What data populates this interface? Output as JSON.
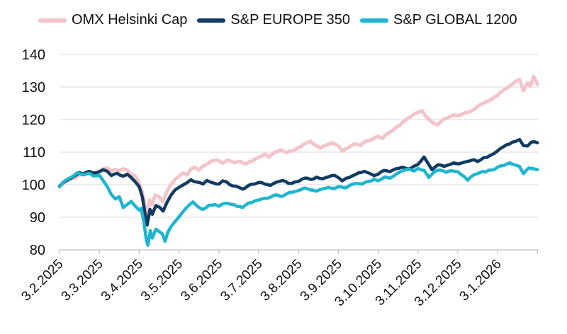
{
  "legend": {
    "position": "top",
    "items": [
      {
        "label": "OMX Helsinki Cap",
        "color": "#F3C5CB"
      },
      {
        "label": "S&P EUROPE 350",
        "color": "#113B62"
      },
      {
        "label": "S&P GLOBAL 1200",
        "color": "#1EB5CF"
      }
    ]
  },
  "chart_data": {
    "type": "line",
    "grid": true,
    "legend_position": "top",
    "background": "#ffffff",
    "gridline_color": "#D9D9D9",
    "axis_color": "#BFBFBF",
    "text_color": "#111111",
    "x_axis": {
      "unit": "months since first tick (labels are d.m.yyyy dates)",
      "tick_labels": [
        "3.2.2025",
        "3.3.2025",
        "3.4.2025",
        "3.5.2025",
        "3.6.2025",
        "3.7.2025",
        "3.8.2025",
        "3.9.2025",
        "3.10.2025",
        "3.11.2025",
        "3.12.2025",
        "3.1.2026"
      ],
      "range": [
        0,
        12.03
      ]
    },
    "y_axis": {
      "min": 80,
      "max": 140,
      "step": 10,
      "tick_labels": [
        "80",
        "90",
        "100",
        "110",
        "120",
        "130",
        "140"
      ]
    },
    "series": [
      {
        "name": "OMX Helsinki Cap",
        "color": "#F3C5CB",
        "points": [
          [
            0,
            99.3
          ],
          [
            0.1,
            100.4
          ],
          [
            0.2,
            101.5
          ],
          [
            0.3,
            102.1
          ],
          [
            0.4,
            102.0
          ],
          [
            0.5,
            103.0
          ],
          [
            0.6,
            103.2
          ],
          [
            0.7,
            103.6
          ],
          [
            0.8,
            103.8
          ],
          [
            0.9,
            103.4
          ],
          [
            1.0,
            104.2
          ],
          [
            1.1,
            104.9
          ],
          [
            1.2,
            105.1
          ],
          [
            1.3,
            104.3
          ],
          [
            1.4,
            104.6
          ],
          [
            1.5,
            104.4
          ],
          [
            1.6,
            104.9
          ],
          [
            1.7,
            104.5
          ],
          [
            1.8,
            103.2
          ],
          [
            1.9,
            102.7
          ],
          [
            2.0,
            100.6
          ],
          [
            2.08,
            97.5
          ],
          [
            2.15,
            92.8
          ],
          [
            2.2,
            91.0
          ],
          [
            2.26,
            95.3
          ],
          [
            2.32,
            93.8
          ],
          [
            2.4,
            96.8
          ],
          [
            2.5,
            96.2
          ],
          [
            2.6,
            94.8
          ],
          [
            2.7,
            98.0
          ],
          [
            2.8,
            100.0
          ],
          [
            2.9,
            101.6
          ],
          [
            3.0,
            102.6
          ],
          [
            3.1,
            103.6
          ],
          [
            3.2,
            103.0
          ],
          [
            3.3,
            104.8
          ],
          [
            3.4,
            105.4
          ],
          [
            3.5,
            104.5
          ],
          [
            3.65,
            106.0
          ],
          [
            3.8,
            107.2
          ],
          [
            3.95,
            107.6
          ],
          [
            4.1,
            106.6
          ],
          [
            4.25,
            107.6
          ],
          [
            4.4,
            106.8
          ],
          [
            4.55,
            107.1
          ],
          [
            4.7,
            106.5
          ],
          [
            4.85,
            107.3
          ],
          [
            5.0,
            108.4
          ],
          [
            5.15,
            109.4
          ],
          [
            5.25,
            108.5
          ],
          [
            5.4,
            110.0
          ],
          [
            5.55,
            110.7
          ],
          [
            5.7,
            109.8
          ],
          [
            5.85,
            110.4
          ],
          [
            6.0,
            111.4
          ],
          [
            6.15,
            112.6
          ],
          [
            6.3,
            113.4
          ],
          [
            6.42,
            112.2
          ],
          [
            6.55,
            111.2
          ],
          [
            6.7,
            112.2
          ],
          [
            6.85,
            112.9
          ],
          [
            7.0,
            112.0
          ],
          [
            7.1,
            110.3
          ],
          [
            7.25,
            111.4
          ],
          [
            7.4,
            112.5
          ],
          [
            7.55,
            112.0
          ],
          [
            7.7,
            113.4
          ],
          [
            7.85,
            113.9
          ],
          [
            8.0,
            114.8
          ],
          [
            8.1,
            114.2
          ],
          [
            8.25,
            115.8
          ],
          [
            8.4,
            117.0
          ],
          [
            8.55,
            118.3
          ],
          [
            8.7,
            120.0
          ],
          [
            8.85,
            121.2
          ],
          [
            9.0,
            122.2
          ],
          [
            9.1,
            122.7
          ],
          [
            9.2,
            121.0
          ],
          [
            9.35,
            119.2
          ],
          [
            9.5,
            118.4
          ],
          [
            9.65,
            120.2
          ],
          [
            9.8,
            120.9
          ],
          [
            9.9,
            121.4
          ],
          [
            10.0,
            121.2
          ],
          [
            10.15,
            121.9
          ],
          [
            10.3,
            122.4
          ],
          [
            10.45,
            123.5
          ],
          [
            10.6,
            124.8
          ],
          [
            10.75,
            125.7
          ],
          [
            10.9,
            126.7
          ],
          [
            11.0,
            127.5
          ],
          [
            11.15,
            129.1
          ],
          [
            11.3,
            130.3
          ],
          [
            11.45,
            131.7
          ],
          [
            11.55,
            132.3
          ],
          [
            11.65,
            128.9
          ],
          [
            11.75,
            131.3
          ],
          [
            11.82,
            130.3
          ],
          [
            11.9,
            133.3
          ],
          [
            12.0,
            130.9
          ]
        ]
      },
      {
        "name": "S&P EUROPE 350",
        "color": "#113B62",
        "points": [
          [
            0,
            99.6
          ],
          [
            0.1,
            100.7
          ],
          [
            0.2,
            101.4
          ],
          [
            0.35,
            102.5
          ],
          [
            0.5,
            103.7
          ],
          [
            0.6,
            103.3
          ],
          [
            0.75,
            104.1
          ],
          [
            0.9,
            103.6
          ],
          [
            1.0,
            104.0
          ],
          [
            1.1,
            104.6
          ],
          [
            1.2,
            104.1
          ],
          [
            1.3,
            102.8
          ],
          [
            1.45,
            103.5
          ],
          [
            1.6,
            102.6
          ],
          [
            1.7,
            103.2
          ],
          [
            1.8,
            102.2
          ],
          [
            1.9,
            100.9
          ],
          [
            2.0,
            99.4
          ],
          [
            2.08,
            96.2
          ],
          [
            2.15,
            90.9
          ],
          [
            2.2,
            87.6
          ],
          [
            2.27,
            92.4
          ],
          [
            2.33,
            90.9
          ],
          [
            2.42,
            93.6
          ],
          [
            2.52,
            93.0
          ],
          [
            2.6,
            91.9
          ],
          [
            2.7,
            94.6
          ],
          [
            2.8,
            96.8
          ],
          [
            2.9,
            98.4
          ],
          [
            3.0,
            99.2
          ],
          [
            3.1,
            99.9
          ],
          [
            3.2,
            100.6
          ],
          [
            3.3,
            101.5
          ],
          [
            3.45,
            100.8
          ],
          [
            3.6,
            100.2
          ],
          [
            3.7,
            101.3
          ],
          [
            3.85,
            100.6
          ],
          [
            4.0,
            100.2
          ],
          [
            4.1,
            101.2
          ],
          [
            4.2,
            100.8
          ],
          [
            4.35,
            99.6
          ],
          [
            4.5,
            99.2
          ],
          [
            4.6,
            98.6
          ],
          [
            4.75,
            99.8
          ],
          [
            4.9,
            100.2
          ],
          [
            5.0,
            100.7
          ],
          [
            5.15,
            100.2
          ],
          [
            5.3,
            99.8
          ],
          [
            5.45,
            100.8
          ],
          [
            5.6,
            101.3
          ],
          [
            5.75,
            100.4
          ],
          [
            5.9,
            100.8
          ],
          [
            6.0,
            101.0
          ],
          [
            6.15,
            102.0
          ],
          [
            6.3,
            101.6
          ],
          [
            6.45,
            102.3
          ],
          [
            6.6,
            101.8
          ],
          [
            6.75,
            102.4
          ],
          [
            6.9,
            102.9
          ],
          [
            7.0,
            102.2
          ],
          [
            7.1,
            101.2
          ],
          [
            7.2,
            102.0
          ],
          [
            7.35,
            102.7
          ],
          [
            7.5,
            103.6
          ],
          [
            7.65,
            104.1
          ],
          [
            7.8,
            103.4
          ],
          [
            7.9,
            102.8
          ],
          [
            8.0,
            103.2
          ],
          [
            8.15,
            104.4
          ],
          [
            8.3,
            104.0
          ],
          [
            8.45,
            104.9
          ],
          [
            8.6,
            105.4
          ],
          [
            8.75,
            104.8
          ],
          [
            8.9,
            105.7
          ],
          [
            9.0,
            106.2
          ],
          [
            9.15,
            108.5
          ],
          [
            9.25,
            106.6
          ],
          [
            9.35,
            104.6
          ],
          [
            9.5,
            106.1
          ],
          [
            9.65,
            105.6
          ],
          [
            9.8,
            106.2
          ],
          [
            9.9,
            106.7
          ],
          [
            10.0,
            106.4
          ],
          [
            10.15,
            106.9
          ],
          [
            10.3,
            107.3
          ],
          [
            10.4,
            107.7
          ],
          [
            10.5,
            107.1
          ],
          [
            10.65,
            108.3
          ],
          [
            10.8,
            108.9
          ],
          [
            10.9,
            109.5
          ],
          [
            11.0,
            110.4
          ],
          [
            11.15,
            111.7
          ],
          [
            11.3,
            112.5
          ],
          [
            11.45,
            113.3
          ],
          [
            11.55,
            113.9
          ],
          [
            11.65,
            112.0
          ],
          [
            11.75,
            111.9
          ],
          [
            11.85,
            113.1
          ],
          [
            12.0,
            112.9
          ]
        ]
      },
      {
        "name": "S&P GLOBAL 1200",
        "color": "#1EB5CF",
        "points": [
          [
            0,
            99.4
          ],
          [
            0.1,
            100.9
          ],
          [
            0.2,
            101.7
          ],
          [
            0.3,
            102.3
          ],
          [
            0.45,
            103.7
          ],
          [
            0.6,
            103.0
          ],
          [
            0.75,
            103.5
          ],
          [
            0.85,
            102.7
          ],
          [
            1.0,
            102.9
          ],
          [
            1.1,
            101.2
          ],
          [
            1.2,
            99.4
          ],
          [
            1.3,
            97.0
          ],
          [
            1.4,
            95.6
          ],
          [
            1.5,
            96.3
          ],
          [
            1.6,
            93.0
          ],
          [
            1.7,
            93.9
          ],
          [
            1.8,
            94.9
          ],
          [
            1.9,
            93.4
          ],
          [
            2.0,
            92.2
          ],
          [
            2.05,
            92.7
          ],
          [
            2.12,
            88.4
          ],
          [
            2.18,
            83.0
          ],
          [
            2.22,
            81.4
          ],
          [
            2.28,
            85.9
          ],
          [
            2.33,
            83.6
          ],
          [
            2.42,
            86.3
          ],
          [
            2.5,
            85.6
          ],
          [
            2.58,
            84.9
          ],
          [
            2.65,
            82.6
          ],
          [
            2.72,
            85.4
          ],
          [
            2.8,
            87.1
          ],
          [
            2.9,
            88.7
          ],
          [
            3.0,
            90.1
          ],
          [
            3.1,
            91.7
          ],
          [
            3.25,
            93.7
          ],
          [
            3.35,
            94.7
          ],
          [
            3.5,
            93.0
          ],
          [
            3.6,
            92.4
          ],
          [
            3.75,
            93.7
          ],
          [
            3.9,
            93.9
          ],
          [
            4.0,
            93.4
          ],
          [
            4.15,
            94.3
          ],
          [
            4.3,
            94.0
          ],
          [
            4.45,
            93.4
          ],
          [
            4.6,
            93.0
          ],
          [
            4.75,
            94.4
          ],
          [
            4.9,
            95.0
          ],
          [
            5.0,
            95.3
          ],
          [
            5.15,
            95.8
          ],
          [
            5.3,
            96.2
          ],
          [
            5.45,
            96.9
          ],
          [
            5.55,
            96.4
          ],
          [
            5.7,
            97.2
          ],
          [
            5.85,
            97.7
          ],
          [
            6.0,
            98.2
          ],
          [
            6.15,
            99.0
          ],
          [
            6.3,
            98.4
          ],
          [
            6.45,
            98.0
          ],
          [
            6.6,
            98.7
          ],
          [
            6.75,
            99.2
          ],
          [
            6.9,
            98.8
          ],
          [
            7.0,
            99.4
          ],
          [
            7.15,
            99.0
          ],
          [
            7.3,
            99.9
          ],
          [
            7.45,
            100.4
          ],
          [
            7.6,
            100.2
          ],
          [
            7.75,
            101.0
          ],
          [
            7.9,
            101.7
          ],
          [
            8.0,
            101.2
          ],
          [
            8.15,
            102.3
          ],
          [
            8.3,
            102.0
          ],
          [
            8.45,
            103.2
          ],
          [
            8.6,
            104.2
          ],
          [
            8.75,
            104.7
          ],
          [
            8.9,
            104.2
          ],
          [
            9.0,
            105.0
          ],
          [
            9.15,
            104.4
          ],
          [
            9.27,
            102.2
          ],
          [
            9.4,
            103.9
          ],
          [
            9.55,
            104.5
          ],
          [
            9.7,
            103.8
          ],
          [
            9.85,
            104.3
          ],
          [
            10.0,
            104.0
          ],
          [
            10.15,
            102.6
          ],
          [
            10.25,
            101.4
          ],
          [
            10.4,
            103.0
          ],
          [
            10.55,
            103.7
          ],
          [
            10.7,
            103.9
          ],
          [
            10.85,
            104.5
          ],
          [
            11.0,
            105.4
          ],
          [
            11.15,
            105.9
          ],
          [
            11.3,
            106.7
          ],
          [
            11.45,
            106.0
          ],
          [
            11.55,
            105.6
          ],
          [
            11.65,
            103.4
          ],
          [
            11.78,
            105.1
          ],
          [
            11.9,
            104.9
          ],
          [
            12.0,
            104.6
          ]
        ]
      }
    ]
  }
}
